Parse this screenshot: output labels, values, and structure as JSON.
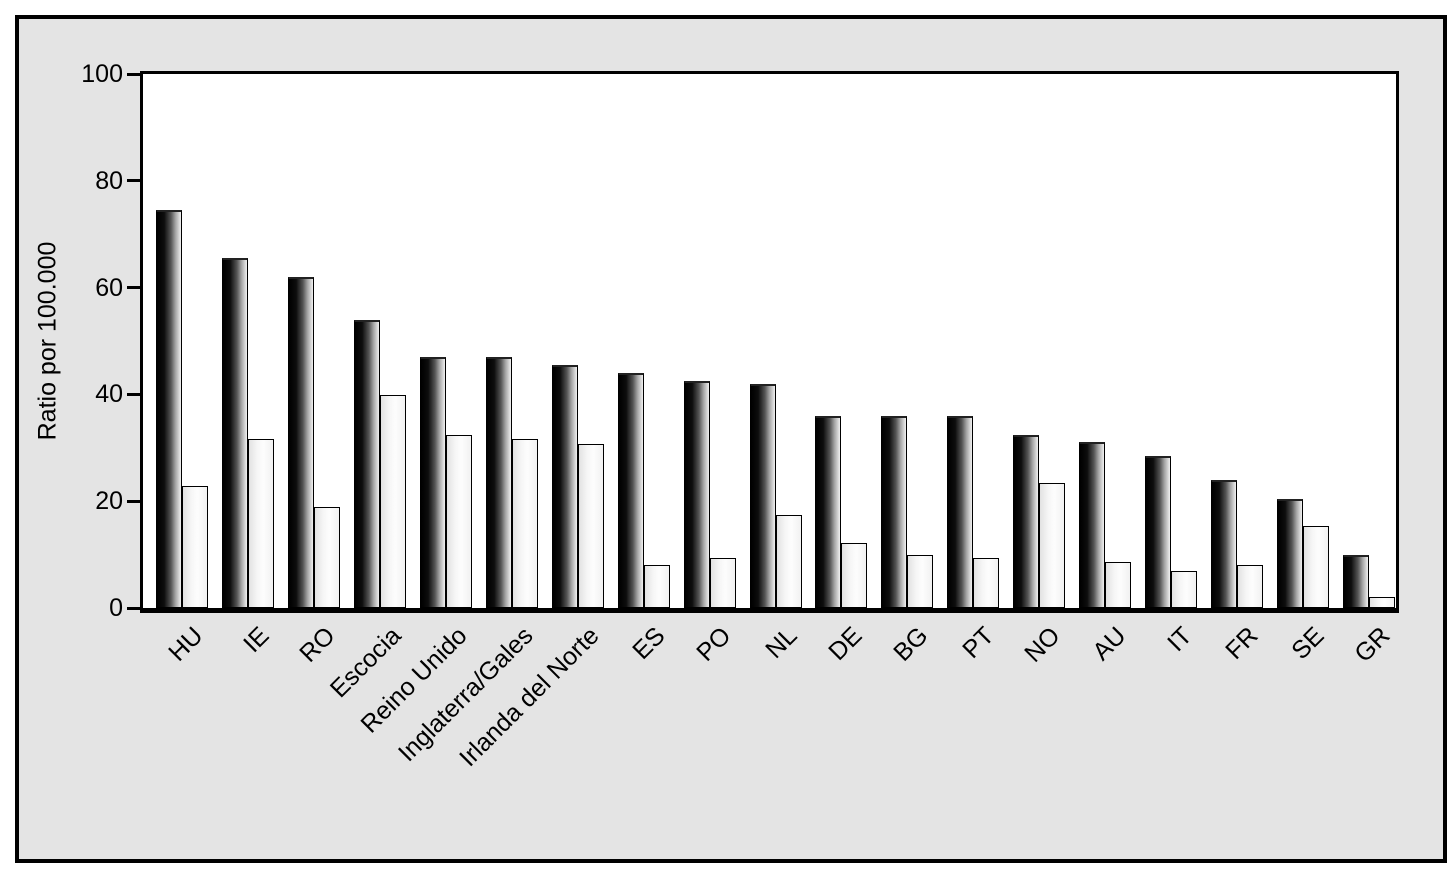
{
  "panel": {
    "background": "#e4e4e4",
    "border_color": "#000000",
    "plot_background": "#ffffff"
  },
  "chart_data": {
    "type": "bar",
    "title": "",
    "xlabel": "",
    "ylabel": "Ratio por 100.000",
    "ylim": [
      0,
      100
    ],
    "yticks": [
      "0",
      "20",
      "40",
      "60",
      "80",
      "100"
    ],
    "grid": false,
    "legend_position": "none",
    "categories": [
      "HU",
      "IE",
      "RO",
      "Escocia",
      "Reino Unido",
      "Inglaterra/Gales",
      "Irlanda del Norte",
      "ES",
      "PO",
      "NL",
      "DE",
      "BG",
      "PT",
      "NO",
      "AU",
      "IT",
      "FR",
      "SE",
      "GR"
    ],
    "series": [
      {
        "name": "dark",
        "values": [
          74.5,
          65.6,
          62,
          54,
          47,
          47,
          45.6,
          44,
          42.6,
          42,
          36,
          36,
          36,
          32.4,
          31,
          28.5,
          24,
          20.5,
          10
        ]
      },
      {
        "name": "light",
        "values": [
          22.8,
          31.7,
          19,
          39.8,
          32.4,
          31.6,
          30.8,
          8,
          9.4,
          17.5,
          12.2,
          10,
          9.4,
          23.4,
          8.7,
          7,
          8,
          15.3,
          2
        ]
      }
    ],
    "bar_style": {
      "dark_gradient": [
        "#000000",
        "#f0f0f0"
      ],
      "light_gradient": [
        "#e2e2e2",
        "#ffffff"
      ],
      "outline": "#000000"
    }
  }
}
